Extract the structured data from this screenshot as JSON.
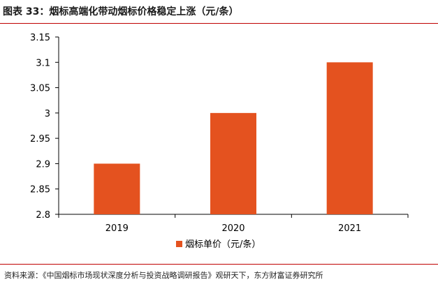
{
  "figure": {
    "title": "图表 33：烟标高端化带动烟标价格稳定上涨（元/条）",
    "source": "资料来源：《中国烟标市场现状深度分析与投资战略调研报告》观研天下，东方财富证券研究所"
  },
  "chart_data": {
    "type": "bar",
    "title": "",
    "xlabel": "",
    "ylabel": "",
    "categories": [
      "2019",
      "2020",
      "2021"
    ],
    "series": [
      {
        "name": "烟标单价（元/条）",
        "values": [
          2.9,
          3.0,
          3.1
        ],
        "color": "#e4521f"
      }
    ],
    "ylim": [
      2.8,
      3.15
    ],
    "yticks": [
      2.8,
      2.85,
      2.9,
      2.95,
      3.0,
      3.05,
      3.1,
      3.15
    ],
    "ytick_labels": [
      "2.8",
      "2.85",
      "2.9",
      "2.95",
      "3",
      "3.05",
      "3.1",
      "3.15"
    ],
    "grid": false,
    "legend": "bottom-center"
  }
}
